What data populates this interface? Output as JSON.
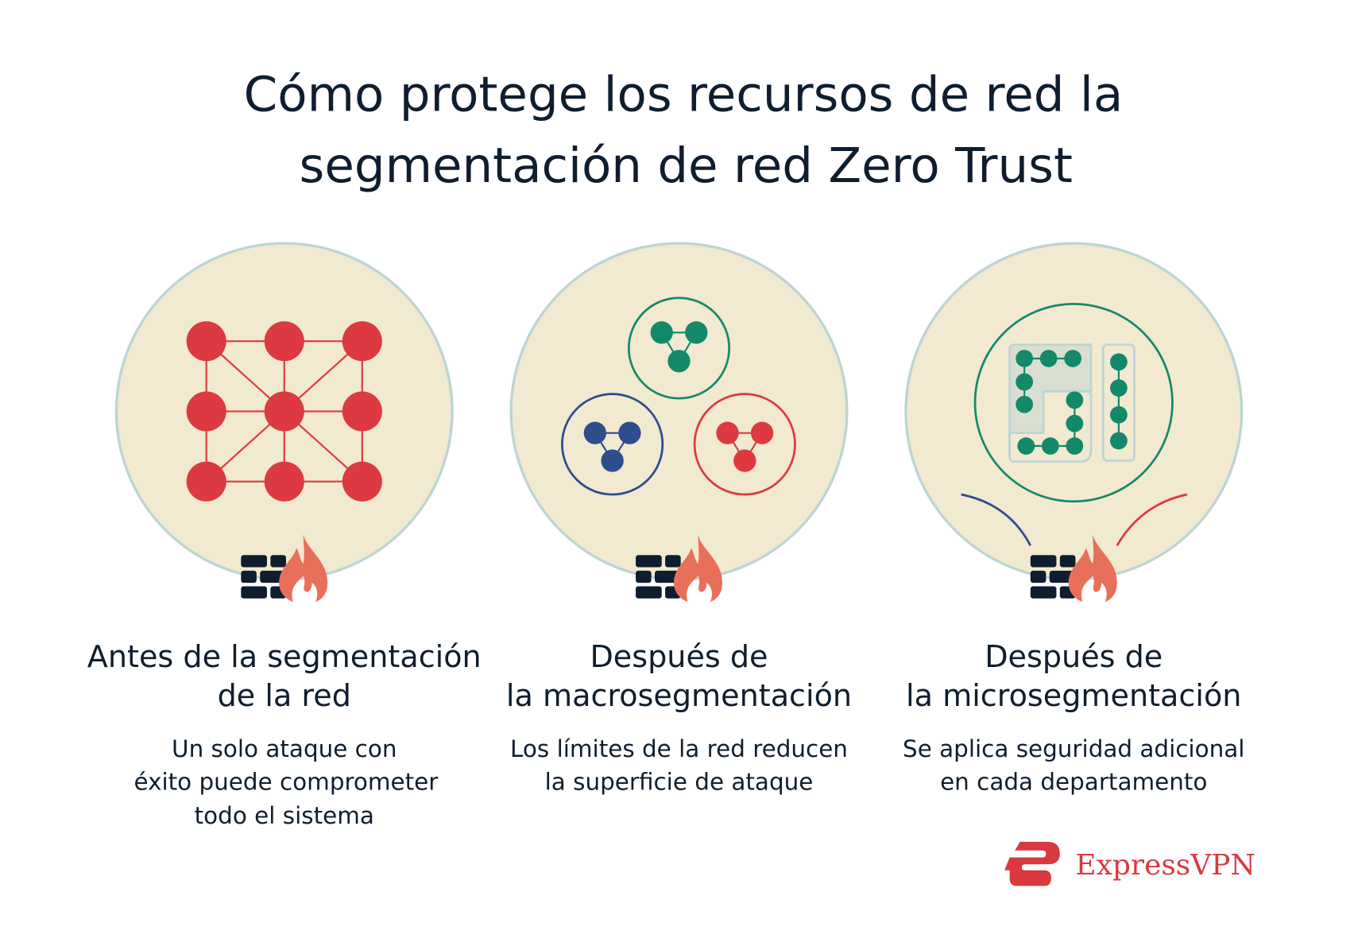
{
  "title": {
    "line1": "Cómo protege los recursos de red la",
    "line2": "segmentación de red Zero Trust"
  },
  "panels": [
    {
      "heading_line1": "Antes de la segmentación",
      "heading_line2": "de la red",
      "desc": [
        "Un solo ataque con",
        "éxito puede comprometer",
        "todo el sistema"
      ]
    },
    {
      "heading_line1": "Después de",
      "heading_line2": "la macrosegmentación",
      "desc": [
        "Los límites de la red reducen",
        "la superficie de ataque"
      ]
    },
    {
      "heading_line1": "Después de",
      "heading_line2": "la microsegmentación",
      "desc": [
        "Se aplica seguridad adicional",
        "en cada departamento"
      ]
    }
  ],
  "icons": {
    "firewall": "firewall-icon",
    "flame": "flame-icon"
  },
  "brand": {
    "name": "ExpressVPN",
    "color": "#da3940"
  },
  "colors": {
    "circle_fill": "#f1e9d0",
    "circle_stroke": "#bcd4d4",
    "red": "#dc3a40",
    "green": "#14896a",
    "blue": "#2d4d8c",
    "dark": "#0f1e2e",
    "flame": "#e8705a"
  }
}
